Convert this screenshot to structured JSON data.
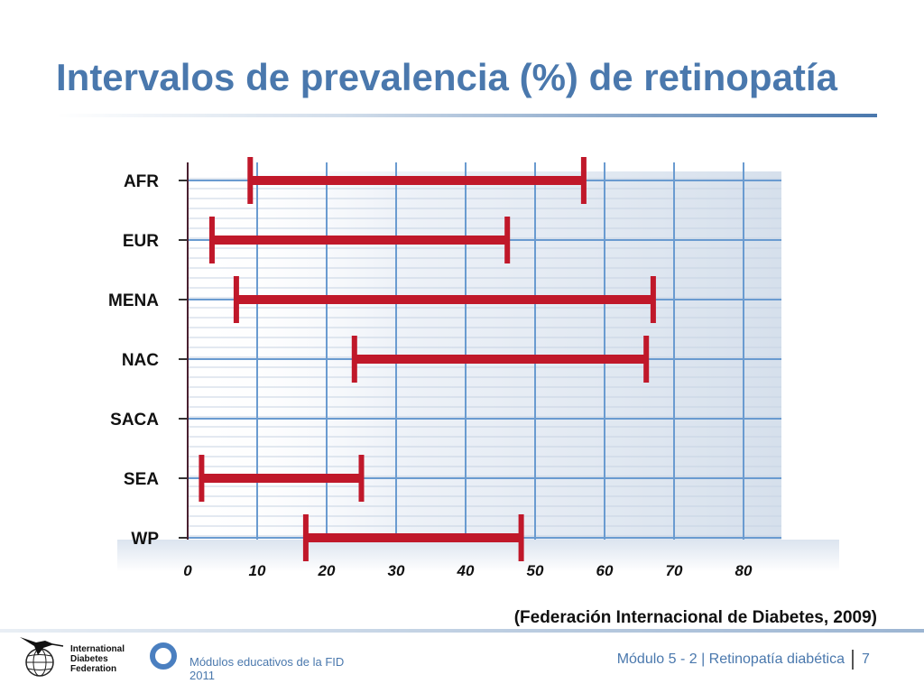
{
  "slide": {
    "title": "Intervalos de prevalencia (%) de retinopatía",
    "citation": "(Federación Internacional de Diabetes, 2009)"
  },
  "chart_data": {
    "type": "range-bar",
    "title": "Intervalos de prevalencia (%) de retinopatía",
    "xlim": [
      0,
      85
    ],
    "xticks": [
      0,
      10,
      20,
      30,
      40,
      50,
      60,
      70,
      80
    ],
    "grid": true,
    "bar_color": "#c0182a",
    "series": [
      {
        "region": "AFR",
        "low": 9,
        "high": 57
      },
      {
        "region": "EUR",
        "low": 3.5,
        "high": 46
      },
      {
        "region": "MENA",
        "low": 7,
        "high": 67
      },
      {
        "region": "NAC",
        "low": 24,
        "high": 66
      },
      {
        "region": "SACA",
        "low": null,
        "high": null
      },
      {
        "region": "SEA",
        "low": 2,
        "high": 25
      },
      {
        "region": "WP",
        "low": 17,
        "high": 48
      }
    ]
  },
  "footer": {
    "org_line1": "International",
    "org_line2": "Diabetes",
    "org_line3": "Federation",
    "series_line1": "Módulos educativos de la FID",
    "series_line2": "2011",
    "module": "Módulo 5 - 2 | Retinopatía diabética",
    "page": "7"
  },
  "colors": {
    "accent": "#4a78ad",
    "bar": "#c0182a",
    "grid": "#6a9bd0",
    "panel": "#dfe7f1"
  }
}
